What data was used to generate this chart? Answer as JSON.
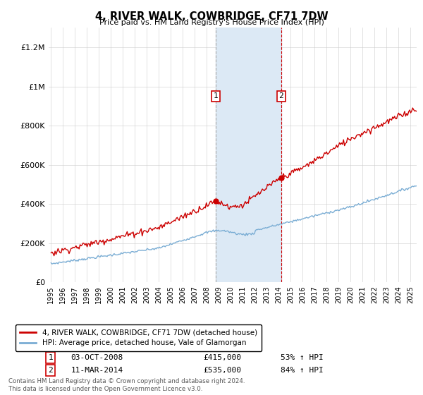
{
  "title": "4, RIVER WALK, COWBRIDGE, CF71 7DW",
  "subtitle": "Price paid vs. HM Land Registry's House Price Index (HPI)",
  "legend_line1": "4, RIVER WALK, COWBRIDGE, CF71 7DW (detached house)",
  "legend_line2": "HPI: Average price, detached house, Vale of Glamorgan",
  "transaction1_label": "1",
  "transaction1_date": "03-OCT-2008",
  "transaction1_price": "£415,000",
  "transaction1_hpi": "53% ↑ HPI",
  "transaction2_label": "2",
  "transaction2_date": "11-MAR-2014",
  "transaction2_price": "£535,000",
  "transaction2_hpi": "84% ↑ HPI",
  "footnote": "Contains HM Land Registry data © Crown copyright and database right 2024.\nThis data is licensed under the Open Government Licence v3.0.",
  "hpi_color": "#7aadd4",
  "price_color": "#cc0000",
  "highlight_color": "#dce9f5",
  "transaction1_x": 2008.75,
  "transaction2_x": 2014.2,
  "transaction1_y": 415000,
  "transaction2_y": 535000,
  "ylim": [
    0,
    1300000
  ],
  "xlim_start": 1994.8,
  "xlim_end": 2025.5,
  "yticks": [
    0,
    200000,
    400000,
    600000,
    800000,
    1000000,
    1200000
  ],
  "ytick_labels": [
    "£0",
    "£200K",
    "£400K",
    "£600K",
    "£800K",
    "£1M",
    "£1.2M"
  ],
  "xtick_years": [
    1995,
    1996,
    1997,
    1998,
    1999,
    2000,
    2001,
    2002,
    2003,
    2004,
    2005,
    2006,
    2007,
    2008,
    2009,
    2010,
    2011,
    2012,
    2013,
    2014,
    2015,
    2016,
    2017,
    2018,
    2019,
    2020,
    2021,
    2022,
    2023,
    2024,
    2025
  ]
}
